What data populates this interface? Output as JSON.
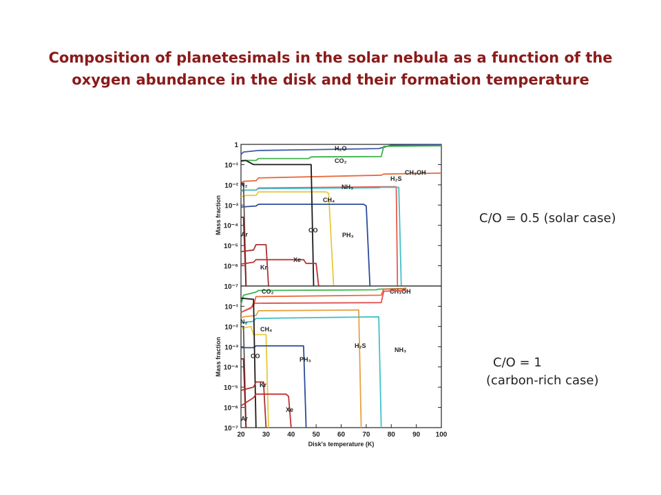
{
  "title_line1": "Composition of planetesimals in the solar nebula as a function of the",
  "title_line2": "oxygen abundance in the disk and their formation temperature",
  "case_top": "C/O = 0.5 (solar case)",
  "case_bottom_line1": "C/O = 1",
  "case_bottom_line2": "(carbon-rich case)",
  "chart_data": [
    {
      "type": "line",
      "xlabel": "",
      "ylabel": "Mass fraction",
      "xlim": [
        20,
        100
      ],
      "ylim": [
        1e-07,
        1
      ],
      "yscale": "log",
      "ytick_labels": [
        "1",
        "10⁻¹",
        "10⁻²",
        "10⁻³",
        "10⁻⁴",
        "10⁻⁵",
        "10⁻⁶",
        "10⁻⁷"
      ],
      "series": [
        {
          "name": "H₂O",
          "color": "#3a5aa8",
          "points": [
            [
              20,
              0.32
            ],
            [
              21,
              0.42
            ],
            [
              27,
              0.5
            ],
            [
              50,
              0.55
            ],
            [
              75,
              0.62
            ],
            [
              80,
              0.9
            ],
            [
              100,
              0.95
            ]
          ]
        },
        {
          "name": "CO₂",
          "color": "#3cb34a",
          "points": [
            [
              20,
              0.16
            ],
            [
              26,
              0.16
            ],
            [
              27,
              0.2
            ],
            [
              47,
              0.2
            ],
            [
              48,
              0.24
            ],
            [
              76,
              0.25
            ],
            [
              77,
              0.8
            ],
            [
              100,
              0.85
            ]
          ]
        },
        {
          "name": "CH₃OH",
          "color": "#e86a3c",
          "points": [
            [
              20,
              0.012
            ],
            [
              21,
              0.015
            ],
            [
              26,
              0.016
            ],
            [
              27,
              0.022
            ],
            [
              76,
              0.03
            ],
            [
              77,
              0.034
            ],
            [
              100,
              0.038
            ]
          ]
        },
        {
          "name": "H₂S",
          "color": "#e85a4a",
          "points": [
            [
              20,
              0.0055
            ],
            [
              26,
              0.0055
            ],
            [
              27,
              0.007
            ],
            [
              76,
              0.008
            ],
            [
              82,
              0.008
            ],
            [
              82.5,
              1e-07
            ]
          ]
        },
        {
          "name": "NH₃",
          "color": "#40c0c8",
          "points": [
            [
              20,
              0.0045
            ],
            [
              21,
              0.0055
            ],
            [
              26,
              0.0055
            ],
            [
              27,
              0.0065
            ],
            [
              75,
              0.0072
            ],
            [
              76,
              0.0075
            ],
            [
              83,
              0.0075
            ],
            [
              84,
              1e-07
            ]
          ]
        },
        {
          "name": "CH₄",
          "color": "#e8c83c",
          "points": [
            [
              20,
              0.0025
            ],
            [
              22,
              0.003
            ],
            [
              26,
              0.003
            ],
            [
              27,
              0.0045
            ],
            [
              54,
              0.0045
            ],
            [
              55,
              0.0038
            ],
            [
              57,
              1e-07
            ]
          ]
        },
        {
          "name": "PH₃",
          "color": "#2a4a9a",
          "points": [
            [
              20,
              0.0008
            ],
            [
              26,
              0.0009
            ],
            [
              27,
              0.0011
            ],
            [
              69,
              0.0011
            ],
            [
              70,
              0.0009
            ],
            [
              71.5,
              1e-07
            ]
          ]
        },
        {
          "name": "CO",
          "color": "#1a1a1a",
          "points": [
            [
              20,
              0.15
            ],
            [
              22,
              0.16
            ],
            [
              25,
              0.1
            ],
            [
              27,
              0.1
            ],
            [
              48,
              0.1
            ],
            [
              49,
              1e-07
            ]
          ]
        },
        {
          "name": "N₂",
          "color": "#555555",
          "points": [
            [
              20,
              0.012
            ],
            [
              21,
              0.012
            ],
            [
              22,
              1e-07
            ]
          ]
        },
        {
          "name": "Ar",
          "color": "#8b1a1a",
          "points": [
            [
              20,
              0.00025
            ],
            [
              21,
              0.00025
            ],
            [
              22,
              1e-07
            ]
          ]
        },
        {
          "name": "Kr",
          "color": "#a83232",
          "points": [
            [
              20,
              5e-06
            ],
            [
              25,
              6e-06
            ],
            [
              26,
              1.1e-05
            ],
            [
              30,
              1.1e-05
            ],
            [
              31,
              1e-07
            ]
          ]
        },
        {
          "name": "Xe",
          "color": "#c03030",
          "points": [
            [
              20,
              1.2e-06
            ],
            [
              25,
              1.5e-06
            ],
            [
              26,
              2e-06
            ],
            [
              45,
              2e-06
            ],
            [
              46,
              1.3e-06
            ],
            [
              50,
              1.3e-06
            ],
            [
              51,
              1e-07
            ]
          ]
        }
      ]
    },
    {
      "type": "line",
      "xlabel": "Disk's temperature (K)",
      "ylabel": "Mass fraction",
      "xlim": [
        20,
        100
      ],
      "ylim": [
        1e-07,
        1
      ],
      "yscale": "log",
      "xticks": [
        20,
        30,
        40,
        50,
        60,
        70,
        80,
        90,
        100
      ],
      "ytick_labels": [
        "10⁻¹",
        "10⁻²",
        "10⁻³",
        "10⁻⁴",
        "10⁻⁵",
        "10⁻⁶",
        "10⁻⁷"
      ],
      "series": [
        {
          "name": "CO₂",
          "color": "#3cb34a",
          "points": [
            [
              20,
              0.12
            ],
            [
              21,
              0.35
            ],
            [
              26,
              0.5
            ],
            [
              27,
              0.6
            ],
            [
              74,
              0.65
            ],
            [
              75,
              0.7
            ],
            [
              85,
              0.75
            ],
            [
              86,
              0.78
            ]
          ]
        },
        {
          "name": "CH₃OH",
          "color": "#e86a3c",
          "points": [
            [
              20,
              0.05
            ],
            [
              25,
              0.1
            ],
            [
              26,
              0.3
            ],
            [
              76,
              0.35
            ],
            [
              77,
              0.7
            ],
            [
              86,
              0.72
            ]
          ]
        },
        {
          "name": "",
          "color": "#e05050",
          "points": [
            [
              20,
              0.05
            ],
            [
              24,
              0.08
            ],
            [
              25,
              0.14
            ],
            [
              76,
              0.15
            ],
            [
              77,
              0.55
            ],
            [
              86,
              0.6
            ]
          ]
        },
        {
          "name": "H₂S",
          "color": "#e8a040",
          "points": [
            [
              20,
              0.025
            ],
            [
              21,
              0.03
            ],
            [
              26,
              0.035
            ],
            [
              27,
              0.06
            ],
            [
              67,
              0.065
            ],
            [
              68,
              1e-07
            ]
          ]
        },
        {
          "name": "NH₃",
          "color": "#40c0c8",
          "points": [
            [
              20,
              0.015
            ],
            [
              25,
              0.018
            ],
            [
              26,
              0.025
            ],
            [
              75,
              0.03
            ],
            [
              76,
              1e-07
            ]
          ]
        },
        {
          "name": "CH₄",
          "color": "#e8c83c",
          "points": [
            [
              20,
              0.008
            ],
            [
              24,
              0.01
            ],
            [
              25,
              0.004
            ],
            [
              30,
              0.004
            ],
            [
              31,
              1e-07
            ]
          ]
        },
        {
          "name": "PH₃",
          "color": "#2a4a9a",
          "points": [
            [
              20,
              0.0009
            ],
            [
              25,
              0.0009
            ],
            [
              26,
              0.0011
            ],
            [
              45,
              0.0011
            ],
            [
              46,
              1e-07
            ]
          ]
        },
        {
          "name": "CO",
          "color": "#1a1a1a",
          "points": [
            [
              20,
              0.25
            ],
            [
              25,
              0.22
            ],
            [
              26,
              1e-07
            ]
          ]
        },
        {
          "name": "N₂",
          "color": "#555555",
          "points": [
            [
              20,
              0.01
            ],
            [
              21,
              0.01
            ],
            [
              22,
              1e-07
            ]
          ]
        },
        {
          "name": "Ar",
          "color": "#8b1a1a",
          "points": [
            [
              20,
              0.00025
            ],
            [
              21,
              0.00025
            ],
            [
              22,
              1e-07
            ]
          ]
        },
        {
          "name": "Kr",
          "color": "#a83232",
          "points": [
            [
              20,
              7e-06
            ],
            [
              25,
              1e-05
            ],
            [
              26,
              1.8e-05
            ],
            [
              29,
              1.8e-05
            ],
            [
              30,
              1e-07
            ]
          ]
        },
        {
          "name": "Xe",
          "color": "#c03030",
          "points": [
            [
              20,
              1.2e-06
            ],
            [
              25,
              3e-06
            ],
            [
              26,
              4.5e-06
            ],
            [
              38,
              4.5e-06
            ],
            [
              39,
              3.5e-06
            ],
            [
              40,
              1e-07
            ]
          ]
        }
      ]
    }
  ]
}
